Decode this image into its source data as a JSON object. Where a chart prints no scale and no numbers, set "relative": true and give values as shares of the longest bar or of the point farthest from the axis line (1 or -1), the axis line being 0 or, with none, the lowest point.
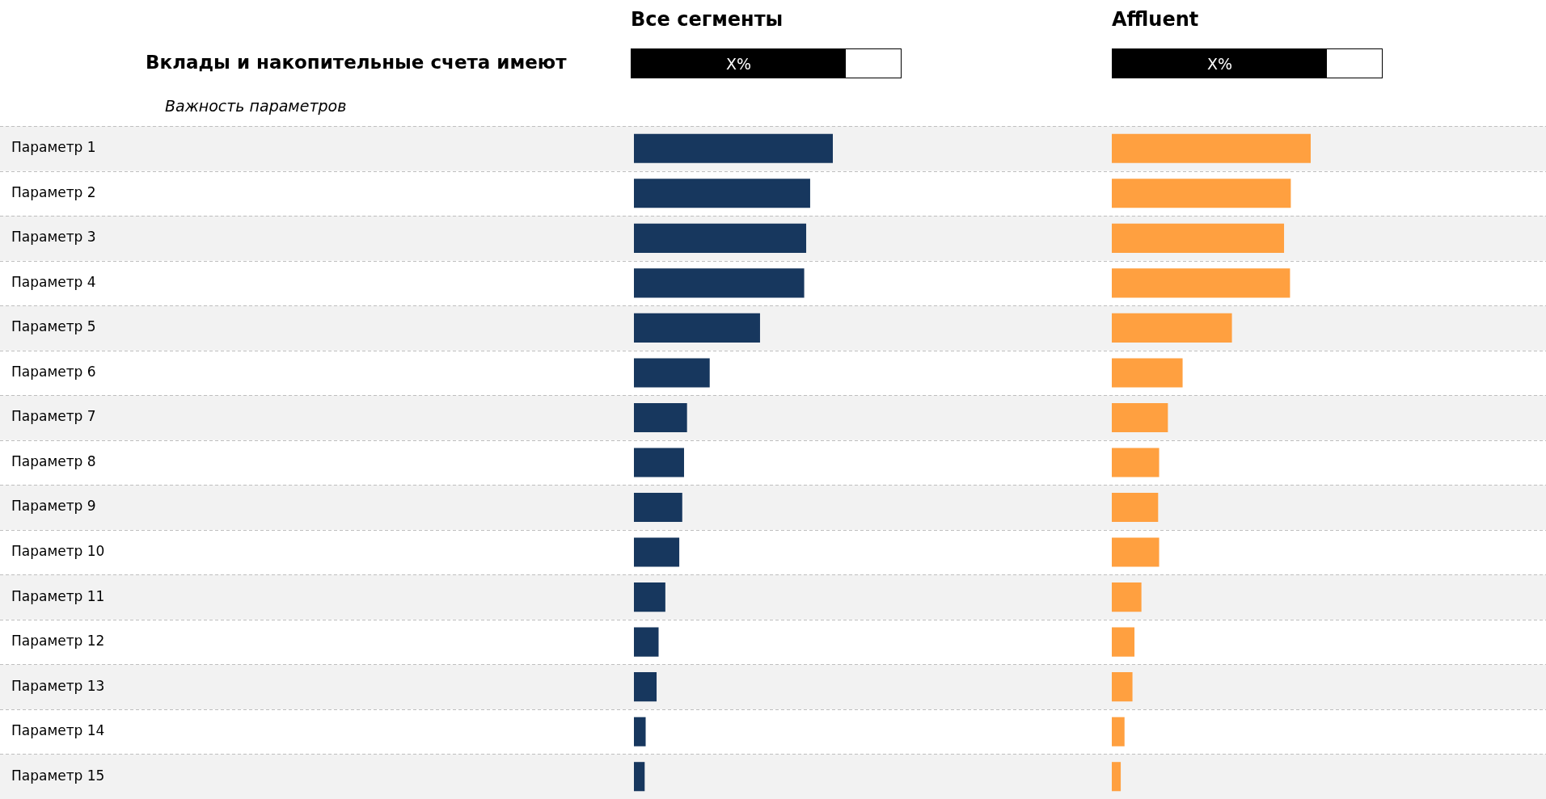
{
  "chart_data": [
    {
      "type": "bar",
      "orientation": "horizontal",
      "relative": true,
      "title": "Все сегменты",
      "annotations": [
        "Вклады и накопительные счета имеют",
        "Важность параметров",
        "X%"
      ],
      "categories": [
        "Параметр 1",
        "Параметр 2",
        "Параметр 3",
        "Параметр 4",
        "Параметр 5",
        "Параметр 6",
        "Параметр 7",
        "Параметр 8",
        "Параметр 9",
        "Параметр 10",
        "Параметр 11",
        "Параметр 12",
        "Параметр 13",
        "Параметр 14",
        "Параметр 15"
      ],
      "color": "#17375e",
      "values": [
        1,
        0.886,
        0.866,
        0.856,
        0.634,
        0.381,
        0.267,
        0.252,
        0.243,
        0.228,
        0.158,
        0.124,
        0.114,
        0.059,
        0.054
      ],
      "grid": "y",
      "tick_labels": "y"
    },
    {
      "type": "bar",
      "orientation": "horizontal",
      "relative": true,
      "title": "Affluent",
      "annotations": [
        "X%"
      ],
      "categories": [
        null,
        null,
        null,
        null,
        null,
        null,
        null,
        null,
        null,
        null,
        null,
        null,
        null,
        null,
        null
      ],
      "color": "#ffa040",
      "values": [
        1,
        0.9,
        0.866,
        0.896,
        0.604,
        0.356,
        0.282,
        0.238,
        0.233,
        0.238,
        0.149,
        0.114,
        0.104,
        0.064,
        0.045
      ],
      "grid": "y",
      "tick_labels": false
    }
  ]
}
